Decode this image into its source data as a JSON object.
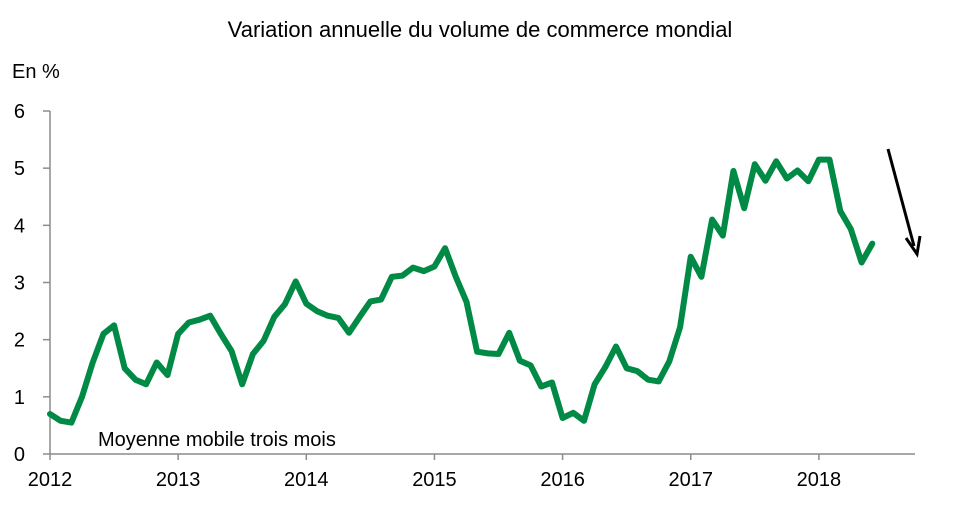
{
  "chart_data": {
    "type": "line",
    "title": "Variation annuelle du volume de commerce mondial",
    "ylabel": "En %",
    "annotation": "Moyenne mobile trois mois",
    "ylim": [
      0,
      6
    ],
    "yticks": [
      0,
      1,
      2,
      3,
      4,
      5,
      6
    ],
    "xlim": [
      2012.0,
      2018.75
    ],
    "xticks": [
      2012,
      2013,
      2014,
      2015,
      2016,
      2017,
      2018
    ],
    "xtick_labels": [
      "2012",
      "2013",
      "2014",
      "2015",
      "2016",
      "2017",
      "2018"
    ],
    "grid": false,
    "legend": "none",
    "line_color": "#008A45",
    "arrow_color": "#000000",
    "series": [
      {
        "x": [
          2012.0,
          2012.083,
          2012.167,
          2012.25,
          2012.333,
          2012.417,
          2012.5,
          2012.583,
          2012.667,
          2012.75,
          2012.833,
          2012.917,
          2013.0,
          2013.083,
          2013.167,
          2013.25,
          2013.333,
          2013.417,
          2013.5,
          2013.583,
          2013.667,
          2013.75,
          2013.833,
          2013.917,
          2014.0,
          2014.083,
          2014.167,
          2014.25,
          2014.333,
          2014.417,
          2014.5,
          2014.583,
          2014.667,
          2014.75,
          2014.833,
          2014.917,
          2015.0,
          2015.083,
          2015.167,
          2015.25,
          2015.333,
          2015.417,
          2015.5,
          2015.583,
          2015.667,
          2015.75,
          2015.833,
          2015.917,
          2016.0,
          2016.083,
          2016.167,
          2016.25,
          2016.333,
          2016.417,
          2016.5,
          2016.583,
          2016.667,
          2016.75,
          2016.833,
          2016.917,
          2017.0,
          2017.083,
          2017.167,
          2017.25,
          2017.333,
          2017.417,
          2017.5,
          2017.583,
          2017.667,
          2017.75,
          2017.833,
          2017.917,
          2018.0,
          2018.083,
          2018.167,
          2018.25,
          2018.333,
          2018.417
        ],
        "values": [
          0.7,
          0.58,
          0.55,
          1.0,
          1.6,
          2.1,
          2.25,
          1.5,
          1.3,
          1.22,
          1.6,
          1.38,
          2.1,
          2.3,
          2.35,
          2.42,
          2.1,
          1.8,
          1.22,
          1.75,
          1.98,
          2.4,
          2.62,
          3.02,
          2.63,
          2.5,
          2.42,
          2.38,
          2.12,
          2.4,
          2.67,
          2.7,
          3.1,
          3.12,
          3.26,
          3.2,
          3.28,
          3.6,
          3.1,
          2.66,
          1.79,
          1.76,
          1.75,
          2.12,
          1.63,
          1.55,
          1.18,
          1.25,
          0.63,
          0.72,
          0.58,
          1.22,
          1.52,
          1.88,
          1.5,
          1.45,
          1.3,
          1.27,
          1.62,
          2.22,
          3.45,
          3.1,
          4.1,
          3.82,
          4.95,
          4.3,
          5.07,
          4.78,
          5.12,
          4.82,
          4.96,
          4.77,
          5.15,
          5.15,
          4.25,
          3.93,
          3.35,
          3.68
        ]
      }
    ]
  }
}
